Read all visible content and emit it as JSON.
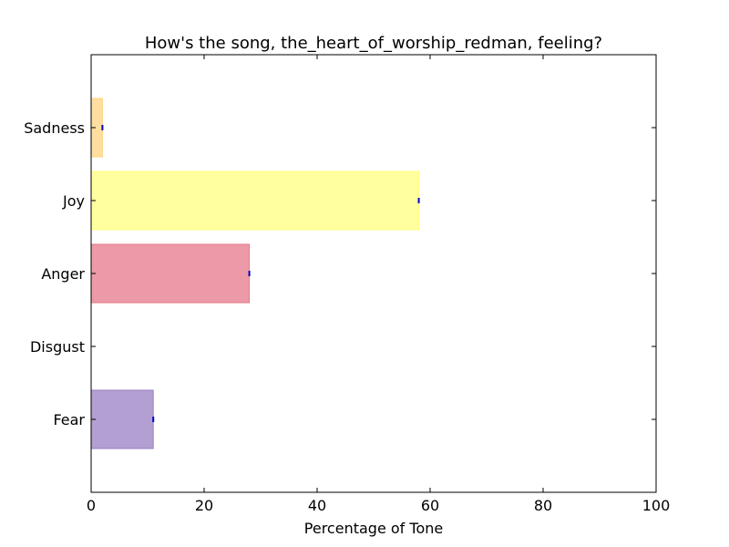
{
  "chart_data": {
    "type": "bar",
    "orientation": "horizontal",
    "title": "How's the song, the_heart_of_worship_redman, feeling?",
    "xlabel": "Percentage of Tone",
    "ylabel": "",
    "xlim": [
      0,
      100
    ],
    "x_ticks": [
      0,
      20,
      40,
      60,
      80,
      100
    ],
    "grid": false,
    "categories": [
      "Sadness",
      "Joy",
      "Anger",
      "Disgust",
      "Fear"
    ],
    "values": [
      2,
      58,
      28,
      0,
      11
    ],
    "colors": [
      "#ffd37f",
      "#ffff7f",
      "#e6788a",
      "#7fbf7f",
      "#9a7fc2"
    ],
    "error_bar_color": "#0000cc"
  }
}
